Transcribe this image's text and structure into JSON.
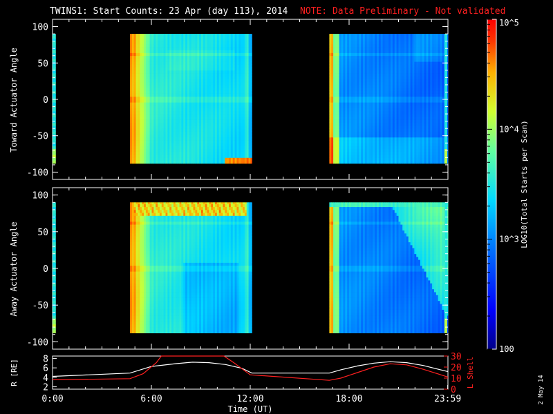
{
  "title": "TWINS1: Start Counts: 23 Apr (day 113), 2014",
  "note": "NOTE: Data Preliminary - Not validated",
  "stamp": "2 May 14",
  "colors": {
    "note": "#ff2020",
    "lshell": "#ff2020",
    "radius": "#ffffff",
    "background": "#000000"
  },
  "chart_data": [
    {
      "type": "heatmap",
      "ylabel": "Toward Actuator Angle",
      "ylim": [
        -110,
        110
      ],
      "yticks": [
        "100",
        "50",
        "0",
        "-50",
        "-100"
      ],
      "xlim": [
        0,
        24
      ],
      "data_intervals_ut": [
        [
          4.7,
          12.1
        ],
        [
          16.8,
          24.0
        ]
      ],
      "edge_strip_ut": [
        [
          0.0,
          0.2
        ]
      ],
      "angle_range": [
        -88,
        90
      ],
      "zscale": "log",
      "zlim": [
        100,
        100000
      ]
    },
    {
      "type": "heatmap",
      "ylabel": "Away Actuator Angle",
      "ylim": [
        -110,
        110
      ],
      "yticks": [
        "100",
        "50",
        "0",
        "-50",
        "-100"
      ],
      "xlim": [
        0,
        24
      ],
      "data_intervals_ut": [
        [
          4.7,
          12.1
        ],
        [
          16.8,
          24.0
        ]
      ],
      "edge_strip_ut": [
        [
          0.0,
          0.2
        ]
      ],
      "angle_range": [
        -88,
        90
      ],
      "zscale": "log",
      "zlim": [
        100,
        100000
      ]
    },
    {
      "type": "line",
      "xlabel": "Time (UT)",
      "xlim": [
        0,
        24
      ],
      "xticks": [
        "0:00",
        "6:00",
        "12:00",
        "18:00",
        "23:59"
      ],
      "ylabel_left": "R [RE]",
      "ylim_left": [
        1.5,
        8.5
      ],
      "yticks_left": [
        "8",
        "6",
        "4",
        "2"
      ],
      "ylabel_right": "L Shell",
      "ylim_right": [
        0,
        30
      ],
      "yticks_right": [
        "30",
        "20",
        "10",
        "0"
      ],
      "series": [
        {
          "name": "R [RE]",
          "axis": "left",
          "x": [
            0,
            4.7,
            6,
            7.5,
            8.5,
            9.5,
            10.5,
            11.5,
            12.1,
            16.8,
            17.5,
            18.5,
            19.5,
            20.5,
            21.5,
            22.5,
            24
          ],
          "y": [
            4.2,
            4.9,
            6.3,
            6.9,
            7.2,
            7.1,
            6.7,
            5.9,
            4.9,
            4.9,
            5.6,
            6.4,
            7.0,
            7.3,
            7.1,
            6.5,
            5.2
          ]
        },
        {
          "name": "L Shell",
          "axis": "right",
          "x": [
            0,
            4.7,
            5.5,
            6.3,
            6.6,
            10.4,
            11.0,
            12.0,
            16.8,
            17.5,
            18.5,
            19.5,
            20.5,
            21.5,
            22.5,
            24
          ],
          "y": [
            8.5,
            9.5,
            14,
            24,
            30,
            30,
            24,
            13,
            8,
            10,
            15,
            20,
            23,
            22,
            18,
            11
          ]
        }
      ]
    }
  ],
  "colorbar": {
    "label": "LOG10(Total Starts per Scan)",
    "ticks": [
      "10^5",
      "10^4",
      "10^3",
      "100"
    ],
    "range": [
      100,
      100000
    ]
  }
}
